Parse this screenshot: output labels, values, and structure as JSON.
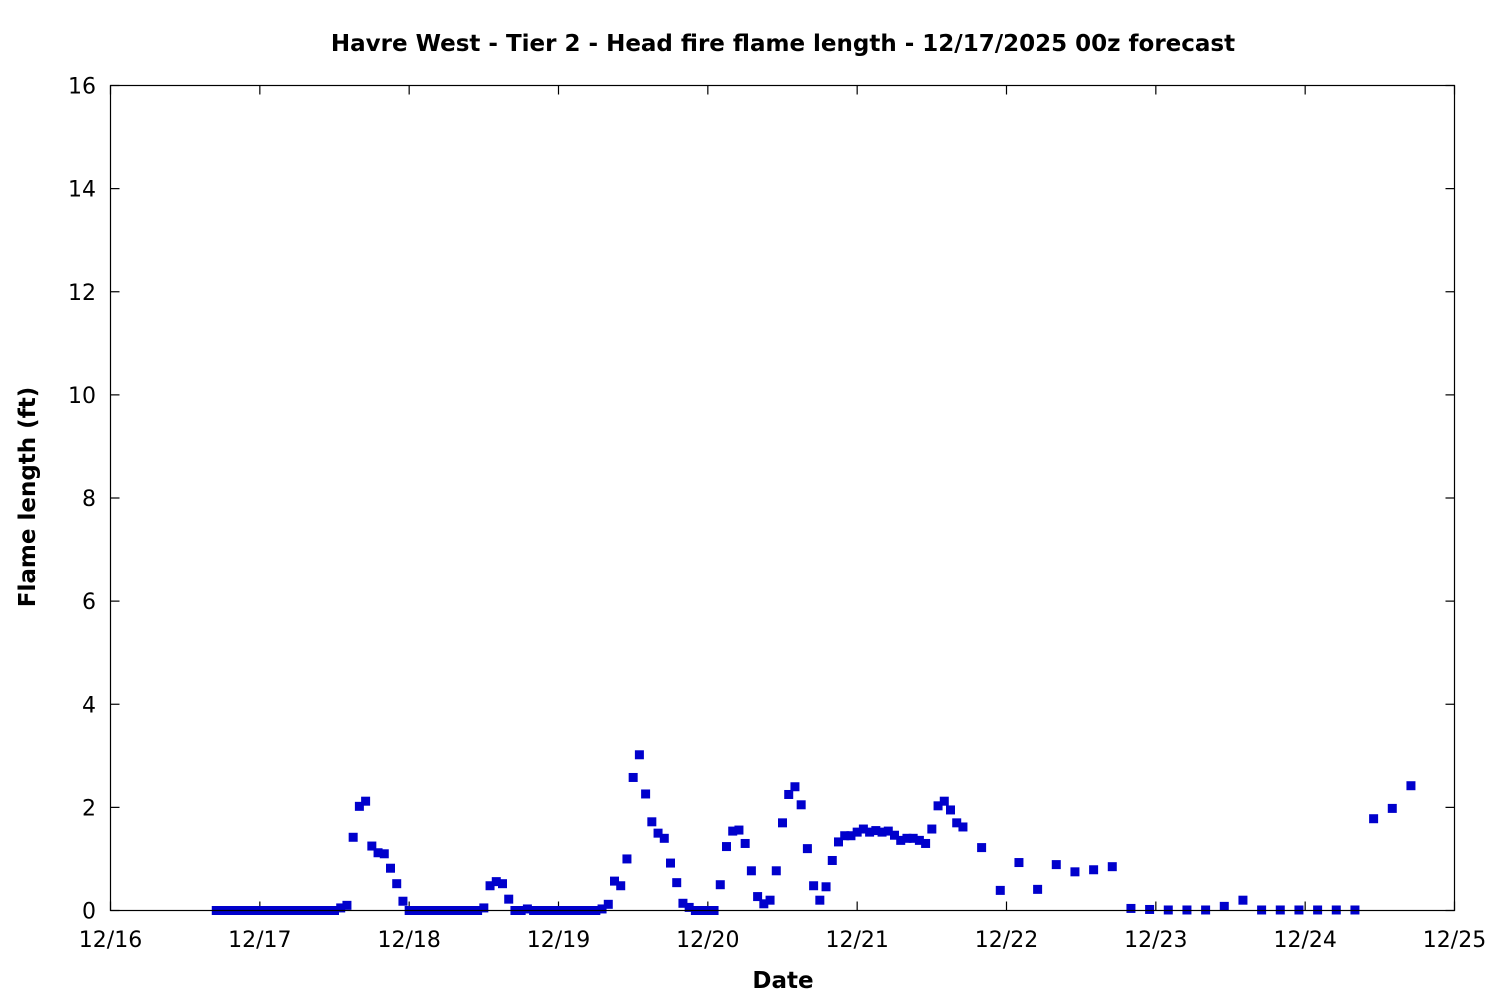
{
  "chart_data": {
    "type": "scatter",
    "title": "Havre West - Tier 2 - Head fire flame length - 12/17/2025 00z forecast",
    "xlabel": "Date",
    "ylabel": "Flame length (ft)",
    "xlim": [
      "2025-12-16 00:00",
      "2025-12-25 00:00"
    ],
    "ylim": [
      0,
      16
    ],
    "x_tick_labels": [
      "12/16",
      "12/17",
      "12/18",
      "12/19",
      "12/20",
      "12/21",
      "12/22",
      "12/23",
      "12/24",
      "12/25"
    ],
    "y_ticks": [
      0,
      2,
      4,
      6,
      8,
      10,
      12,
      14,
      16
    ],
    "grid": false,
    "marker": "square",
    "color": "#0000cc",
    "points": [
      [
        "2025-12-16 17:00",
        0
      ],
      [
        "2025-12-16 18:00",
        0
      ],
      [
        "2025-12-16 19:00",
        0
      ],
      [
        "2025-12-16 20:00",
        0
      ],
      [
        "2025-12-16 21:00",
        0
      ],
      [
        "2025-12-16 22:00",
        0
      ],
      [
        "2025-12-16 23:00",
        0
      ],
      [
        "2025-12-17 00:00",
        0
      ],
      [
        "2025-12-17 01:00",
        0
      ],
      [
        "2025-12-17 02:00",
        0
      ],
      [
        "2025-12-17 03:00",
        0
      ],
      [
        "2025-12-17 04:00",
        0
      ],
      [
        "2025-12-17 05:00",
        0
      ],
      [
        "2025-12-17 06:00",
        0
      ],
      [
        "2025-12-17 07:00",
        0
      ],
      [
        "2025-12-17 08:00",
        0
      ],
      [
        "2025-12-17 09:00",
        0
      ],
      [
        "2025-12-17 10:00",
        0
      ],
      [
        "2025-12-17 11:00",
        0
      ],
      [
        "2025-12-17 12:00",
        0
      ],
      [
        "2025-12-17 13:00",
        0.05
      ],
      [
        "2025-12-17 14:00",
        0.1
      ],
      [
        "2025-12-17 15:00",
        1.42
      ],
      [
        "2025-12-17 16:00",
        2.02
      ],
      [
        "2025-12-17 17:00",
        2.12
      ],
      [
        "2025-12-17 18:00",
        1.25
      ],
      [
        "2025-12-17 19:00",
        1.12
      ],
      [
        "2025-12-17 20:00",
        1.1
      ],
      [
        "2025-12-17 21:00",
        0.82
      ],
      [
        "2025-12-17 22:00",
        0.52
      ],
      [
        "2025-12-17 23:00",
        0.18
      ],
      [
        "2025-12-18 00:00",
        0
      ],
      [
        "2025-12-18 01:00",
        0
      ],
      [
        "2025-12-18 02:00",
        0
      ],
      [
        "2025-12-18 03:00",
        0
      ],
      [
        "2025-12-18 04:00",
        0
      ],
      [
        "2025-12-18 05:00",
        0
      ],
      [
        "2025-12-18 06:00",
        0
      ],
      [
        "2025-12-18 07:00",
        0
      ],
      [
        "2025-12-18 08:00",
        0
      ],
      [
        "2025-12-18 09:00",
        0
      ],
      [
        "2025-12-18 10:00",
        0
      ],
      [
        "2025-12-18 11:00",
        0
      ],
      [
        "2025-12-18 12:00",
        0.05
      ],
      [
        "2025-12-18 13:00",
        0.48
      ],
      [
        "2025-12-18 14:00",
        0.56
      ],
      [
        "2025-12-18 15:00",
        0.52
      ],
      [
        "2025-12-18 16:00",
        0.22
      ],
      [
        "2025-12-18 17:00",
        0
      ],
      [
        "2025-12-18 18:00",
        0
      ],
      [
        "2025-12-18 19:00",
        0.03
      ],
      [
        "2025-12-18 20:00",
        0
      ],
      [
        "2025-12-18 21:00",
        0
      ],
      [
        "2025-12-18 22:00",
        0
      ],
      [
        "2025-12-18 23:00",
        0
      ],
      [
        "2025-12-19 00:00",
        0
      ],
      [
        "2025-12-19 01:00",
        0
      ],
      [
        "2025-12-19 02:00",
        0
      ],
      [
        "2025-12-19 03:00",
        0
      ],
      [
        "2025-12-19 04:00",
        0
      ],
      [
        "2025-12-19 05:00",
        0
      ],
      [
        "2025-12-19 06:00",
        0
      ],
      [
        "2025-12-19 07:00",
        0.03
      ],
      [
        "2025-12-19 08:00",
        0.12
      ],
      [
        "2025-12-19 09:00",
        0.57
      ],
      [
        "2025-12-19 10:00",
        0.48
      ],
      [
        "2025-12-19 11:00",
        1.0
      ],
      [
        "2025-12-19 12:00",
        2.58
      ],
      [
        "2025-12-19 13:00",
        3.02
      ],
      [
        "2025-12-19 14:00",
        2.26
      ],
      [
        "2025-12-19 15:00",
        1.72
      ],
      [
        "2025-12-19 16:00",
        1.5
      ],
      [
        "2025-12-19 17:00",
        1.4
      ],
      [
        "2025-12-19 18:00",
        0.92
      ],
      [
        "2025-12-19 19:00",
        0.54
      ],
      [
        "2025-12-19 20:00",
        0.14
      ],
      [
        "2025-12-19 21:00",
        0.06
      ],
      [
        "2025-12-19 22:00",
        0
      ],
      [
        "2025-12-19 23:00",
        0
      ],
      [
        "2025-12-20 00:00",
        0
      ],
      [
        "2025-12-20 01:00",
        0
      ],
      [
        "2025-12-20 02:00",
        0.5
      ],
      [
        "2025-12-20 03:00",
        1.24
      ],
      [
        "2025-12-20 04:00",
        1.54
      ],
      [
        "2025-12-20 05:00",
        1.56
      ],
      [
        "2025-12-20 06:00",
        1.3
      ],
      [
        "2025-12-20 07:00",
        0.77
      ],
      [
        "2025-12-20 08:00",
        0.27
      ],
      [
        "2025-12-20 09:00",
        0.13
      ],
      [
        "2025-12-20 10:00",
        0.2
      ],
      [
        "2025-12-20 11:00",
        0.77
      ],
      [
        "2025-12-20 12:00",
        1.7
      ],
      [
        "2025-12-20 13:00",
        2.25
      ],
      [
        "2025-12-20 14:00",
        2.4
      ],
      [
        "2025-12-20 15:00",
        2.05
      ],
      [
        "2025-12-20 16:00",
        1.2
      ],
      [
        "2025-12-20 17:00",
        0.48
      ],
      [
        "2025-12-20 18:00",
        0.2
      ],
      [
        "2025-12-20 19:00",
        0.46
      ],
      [
        "2025-12-20 20:00",
        0.97
      ],
      [
        "2025-12-20 21:00",
        1.33
      ],
      [
        "2025-12-20 22:00",
        1.45
      ],
      [
        "2025-12-20 23:00",
        1.45
      ],
      [
        "2025-12-21 00:00",
        1.52
      ],
      [
        "2025-12-21 01:00",
        1.58
      ],
      [
        "2025-12-21 02:00",
        1.52
      ],
      [
        "2025-12-21 03:00",
        1.55
      ],
      [
        "2025-12-21 04:00",
        1.52
      ],
      [
        "2025-12-21 05:00",
        1.54
      ],
      [
        "2025-12-21 06:00",
        1.46
      ],
      [
        "2025-12-21 07:00",
        1.36
      ],
      [
        "2025-12-21 08:00",
        1.4
      ],
      [
        "2025-12-21 09:00",
        1.4
      ],
      [
        "2025-12-21 10:00",
        1.36
      ],
      [
        "2025-12-21 11:00",
        1.3
      ],
      [
        "2025-12-21 12:00",
        1.58
      ],
      [
        "2025-12-21 13:00",
        2.03
      ],
      [
        "2025-12-21 14:00",
        2.12
      ],
      [
        "2025-12-21 15:00",
        1.95
      ],
      [
        "2025-12-21 16:00",
        1.7
      ],
      [
        "2025-12-21 17:00",
        1.62
      ],
      [
        "2025-12-21 20:00",
        1.22
      ],
      [
        "2025-12-21 23:00",
        0.39
      ],
      [
        "2025-12-22 02:00",
        0.93
      ],
      [
        "2025-12-22 05:00",
        0.41
      ],
      [
        "2025-12-22 08:00",
        0.89
      ],
      [
        "2025-12-22 11:00",
        0.75
      ],
      [
        "2025-12-22 14:00",
        0.79
      ],
      [
        "2025-12-22 17:00",
        0.85
      ],
      [
        "2025-12-22 20:00",
        0.04
      ],
      [
        "2025-12-22 23:00",
        0.02
      ],
      [
        "2025-12-23 02:00",
        0.01
      ],
      [
        "2025-12-23 05:00",
        0.01
      ],
      [
        "2025-12-23 08:00",
        0.01
      ],
      [
        "2025-12-23 11:00",
        0.08
      ],
      [
        "2025-12-23 14:00",
        0.2
      ],
      [
        "2025-12-23 17:00",
        0.01
      ],
      [
        "2025-12-23 20:00",
        0.01
      ],
      [
        "2025-12-23 23:00",
        0.01
      ],
      [
        "2025-12-24 02:00",
        0.01
      ],
      [
        "2025-12-24 05:00",
        0.01
      ],
      [
        "2025-12-24 08:00",
        0.01
      ],
      [
        "2025-12-24 11:00",
        1.78
      ],
      [
        "2025-12-24 14:00",
        1.98
      ],
      [
        "2025-12-24 17:00",
        2.42
      ]
    ]
  }
}
